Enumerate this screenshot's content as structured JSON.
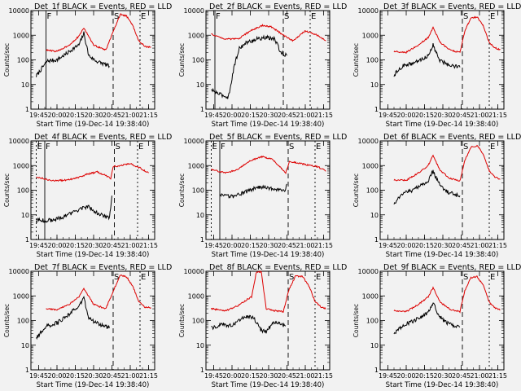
{
  "figure": {
    "xlabel": "Start Time (19-Dec-14 19:38:40)",
    "ylabel": "Counts/sec",
    "x_tick_labels": [
      "19:45",
      "20:00",
      "20:15",
      "20:30",
      "20:45",
      "21:00",
      "21:15"
    ],
    "y_tick_labels": [
      "1",
      "10",
      "100",
      "1000",
      "10000"
    ],
    "colors": {
      "events": "#000000",
      "lld": "#dd0000",
      "background": "#f2f2f2"
    }
  },
  "chart_data": [
    {
      "type": "line",
      "title": "Det_1f BLACK = Events, RED = LLD",
      "xlim": [
        "19:38:40",
        "21:20"
      ],
      "ylim": [
        1,
        10000
      ],
      "yscale": "log",
      "markers": [
        {
          "time": "19:51",
          "label": "F"
        },
        {
          "time": "20:46",
          "label": "S"
        },
        {
          "time": "21:08",
          "label": "E"
        }
      ],
      "series": [
        {
          "name": "Events",
          "color": "#000000",
          "x": [
            "19:43",
            "19:52",
            "20:00",
            "20:08",
            "20:13",
            "20:18",
            "20:22",
            "20:26",
            "20:32",
            "20:38",
            "20:43"
          ],
          "y": [
            22,
            90,
            100,
            180,
            280,
            400,
            1200,
            150,
            90,
            70,
            55
          ]
        },
        {
          "name": "LLD",
          "color": "#dd0000",
          "x": [
            "19:51",
            "20:00",
            "20:10",
            "20:18",
            "20:22",
            "20:30",
            "20:40",
            "20:47",
            "20:52",
            "20:57",
            "21:02",
            "21:07",
            "21:12",
            "21:17"
          ],
          "y": [
            250,
            220,
            400,
            900,
            2000,
            400,
            250,
            1800,
            7000,
            6000,
            2500,
            600,
            350,
            320
          ]
        }
      ]
    },
    {
      "type": "line",
      "title": "Det_2f BLACK = Events, RED = LLD",
      "xlim": [
        "19:38:40",
        "21:20"
      ],
      "ylim": [
        1,
        10000
      ],
      "yscale": "log",
      "markers": [
        {
          "time": "19:46",
          "label": "F"
        },
        {
          "time": "20:42",
          "label": "S"
        },
        {
          "time": "21:04",
          "label": "E"
        }
      ],
      "series": [
        {
          "name": "Events",
          "color": "#000000",
          "x": [
            "19:43",
            "19:50",
            "19:57",
            "20:02",
            "20:06",
            "20:12",
            "20:20",
            "20:28",
            "20:35",
            "20:40",
            "20:45"
          ],
          "y": [
            6,
            4,
            3,
            60,
            300,
            500,
            700,
            800,
            700,
            200,
            150
          ]
        },
        {
          "name": "LLD",
          "color": "#dd0000",
          "x": [
            "19:43",
            "19:55",
            "20:05",
            "20:15",
            "20:25",
            "20:32",
            "20:38",
            "20:42",
            "20:50",
            "21:00",
            "21:10",
            "21:17"
          ],
          "y": [
            1100,
            700,
            700,
            1500,
            2500,
            2200,
            1400,
            1000,
            600,
            1500,
            1000,
            600
          ]
        }
      ]
    },
    {
      "type": "line",
      "title": "Det_3f BLACK = Events, RED = LLD",
      "xlim": [
        "19:38:40",
        "21:20"
      ],
      "ylim": [
        1,
        10000
      ],
      "yscale": "log",
      "markers": [
        {
          "time": "20:46",
          "label": "S"
        },
        {
          "time": "21:08",
          "label": "E"
        }
      ],
      "series": [
        {
          "name": "Events",
          "color": "#000000",
          "x": [
            "19:50",
            "19:58",
            "20:05",
            "20:12",
            "20:18",
            "20:22",
            "20:27",
            "20:33",
            "20:40",
            "20:44"
          ],
          "y": [
            25,
            60,
            70,
            100,
            150,
            400,
            100,
            70,
            55,
            50
          ]
        },
        {
          "name": "LLD",
          "color": "#dd0000",
          "x": [
            "19:50",
            "20:00",
            "20:10",
            "20:18",
            "20:22",
            "20:28",
            "20:36",
            "20:44",
            "20:48",
            "20:53",
            "20:58",
            "21:03",
            "21:08",
            "21:13",
            "21:17"
          ],
          "y": [
            220,
            200,
            400,
            800,
            2000,
            500,
            250,
            200,
            1500,
            5000,
            5500,
            2500,
            500,
            300,
            260
          ]
        }
      ]
    },
    {
      "type": "line",
      "title": "Det_4f BLACK = Events, RED = LLD",
      "xlim": [
        "19:38:40",
        "21:20"
      ],
      "ylim": [
        1,
        10000
      ],
      "yscale": "log",
      "markers": [
        {
          "time": "19:43",
          "label": "E"
        },
        {
          "time": "19:50",
          "label": "F"
        },
        {
          "time": "20:47",
          "label": "S"
        },
        {
          "time": "21:06",
          "label": "E"
        }
      ],
      "series": [
        {
          "name": "Events",
          "color": "#000000",
          "x": [
            "19:43",
            "19:55",
            "20:05",
            "20:15",
            "20:25",
            "20:33",
            "20:40",
            "20:43",
            "20:45"
          ],
          "y": [
            6,
            6,
            8,
            14,
            22,
            12,
            8,
            8,
            60
          ]
        },
        {
          "name": "LLD",
          "color": "#dd0000",
          "x": [
            "19:43",
            "19:55",
            "20:05",
            "20:15",
            "20:25",
            "20:33",
            "20:40",
            "20:44",
            "20:46",
            "21:00",
            "21:08",
            "21:15"
          ],
          "y": [
            350,
            250,
            250,
            300,
            450,
            550,
            400,
            300,
            900,
            1200,
            800,
            500
          ]
        }
      ]
    },
    {
      "type": "line",
      "title": "Det_5f BLACK = Events, RED = LLD",
      "xlim": [
        "19:38:40",
        "21:20"
      ],
      "ylim": [
        1,
        10000
      ],
      "yscale": "log",
      "markers": [
        {
          "time": "19:43",
          "label": "E"
        },
        {
          "time": "19:50",
          "label": "F"
        },
        {
          "time": "20:46",
          "label": "S"
        },
        {
          "time": "21:08",
          "label": "E"
        }
      ],
      "series": [
        {
          "name": "Events",
          "color": "#000000",
          "x": [
            "19:50",
            "20:00",
            "20:10",
            "20:18",
            "20:26",
            "20:32",
            "20:38",
            "20:43",
            "20:45"
          ],
          "y": [
            60,
            55,
            80,
            120,
            140,
            120,
            110,
            90,
            180
          ]
        },
        {
          "name": "LLD",
          "color": "#dd0000",
          "x": [
            "19:43",
            "19:55",
            "20:05",
            "20:15",
            "20:25",
            "20:33",
            "20:40",
            "20:44",
            "20:47",
            "21:00",
            "21:10",
            "21:17"
          ],
          "y": [
            700,
            500,
            700,
            1600,
            2300,
            1800,
            800,
            500,
            1500,
            1100,
            900,
            600
          ]
        }
      ]
    },
    {
      "type": "line",
      "title": "Det_6f BLACK = Events, RED = LLD",
      "xlim": [
        "19:38:40",
        "21:20"
      ],
      "ylim": [
        1,
        10000
      ],
      "yscale": "log",
      "markers": [
        {
          "time": "20:46",
          "label": "S"
        },
        {
          "time": "21:08",
          "label": "E"
        }
      ],
      "series": [
        {
          "name": "Events",
          "color": "#000000",
          "x": [
            "19:50",
            "19:58",
            "20:05",
            "20:12",
            "20:18",
            "20:22",
            "20:27",
            "20:33",
            "20:40",
            "20:44"
          ],
          "y": [
            30,
            80,
            100,
            150,
            250,
            600,
            180,
            90,
            65,
            60
          ]
        },
        {
          "name": "LLD",
          "color": "#dd0000",
          "x": [
            "19:50",
            "20:00",
            "20:10",
            "20:18",
            "20:22",
            "20:28",
            "20:36",
            "20:44",
            "20:48",
            "20:53",
            "20:58",
            "21:03",
            "21:08",
            "21:13",
            "21:17"
          ],
          "y": [
            260,
            250,
            500,
            1000,
            2500,
            600,
            300,
            240,
            1600,
            5500,
            6500,
            3000,
            600,
            330,
            280
          ]
        }
      ]
    },
    {
      "type": "line",
      "title": "Det_7f BLACK = Events, RED = LLD",
      "xlim": [
        "19:38:40",
        "21:20"
      ],
      "ylim": [
        1,
        10000
      ],
      "yscale": "log",
      "markers": [
        {
          "time": "20:46",
          "label": "S"
        },
        {
          "time": "21:08",
          "label": "E"
        }
      ],
      "series": [
        {
          "name": "Events",
          "color": "#000000",
          "x": [
            "19:43",
            "19:52",
            "20:00",
            "20:08",
            "20:13",
            "20:18",
            "20:22",
            "20:26",
            "20:32",
            "20:38",
            "20:43"
          ],
          "y": [
            20,
            60,
            80,
            150,
            250,
            350,
            900,
            120,
            80,
            60,
            50
          ]
        },
        {
          "name": "LLD",
          "color": "#dd0000",
          "x": [
            "19:51",
            "20:00",
            "20:10",
            "20:18",
            "20:22",
            "20:30",
            "20:40",
            "20:47",
            "20:52",
            "20:57",
            "21:02",
            "21:07",
            "21:12",
            "21:17"
          ],
          "y": [
            300,
            280,
            450,
            900,
            2000,
            450,
            300,
            2000,
            7000,
            6000,
            2500,
            600,
            350,
            330
          ]
        }
      ]
    },
    {
      "type": "line",
      "title": "Det_8f BLACK = Events, RED = LLD",
      "xlim": [
        "19:38:40",
        "21:20"
      ],
      "ylim": [
        1,
        10000
      ],
      "yscale": "log",
      "markers": [
        {
          "time": "20:46",
          "label": "S"
        },
        {
          "time": "21:08",
          "label": "E"
        }
      ],
      "series": [
        {
          "name": "Events",
          "color": "#000000",
          "x": [
            "19:43",
            "19:52",
            "20:00",
            "20:06",
            "20:12",
            "20:18",
            "20:24",
            "20:28",
            "20:34",
            "20:40",
            "20:44"
          ],
          "y": [
            50,
            70,
            60,
            100,
            150,
            120,
            40,
            35,
            90,
            70,
            60
          ]
        },
        {
          "name": "LLD",
          "color": "#dd0000",
          "x": [
            "19:43",
            "19:55",
            "20:05",
            "20:12",
            "20:16",
            "20:20",
            "20:24",
            "20:28",
            "20:35",
            "20:42",
            "20:47",
            "20:52",
            "20:58",
            "21:03",
            "21:08",
            "21:13",
            "21:17"
          ],
          "y": [
            300,
            250,
            400,
            700,
            900,
            9500,
            9500,
            300,
            250,
            230,
            2000,
            6500,
            6000,
            2500,
            600,
            350,
            300
          ]
        }
      ]
    },
    {
      "type": "line",
      "title": "Det_9f BLACK = Events, RED = LLD",
      "xlim": [
        "19:38:40",
        "21:20"
      ],
      "ylim": [
        1,
        10000
      ],
      "yscale": "log",
      "markers": [
        {
          "time": "20:46",
          "label": "S"
        },
        {
          "time": "21:08",
          "label": "E"
        }
      ],
      "series": [
        {
          "name": "Events",
          "color": "#000000",
          "x": [
            "19:50",
            "19:58",
            "20:05",
            "20:12",
            "20:18",
            "20:22",
            "20:27",
            "20:33",
            "20:40",
            "20:44"
          ],
          "y": [
            30,
            70,
            90,
            140,
            220,
            500,
            150,
            80,
            60,
            55
          ]
        },
        {
          "name": "LLD",
          "color": "#dd0000",
          "x": [
            "19:50",
            "20:00",
            "20:10",
            "20:18",
            "20:22",
            "20:28",
            "20:36",
            "20:44",
            "20:48",
            "20:53",
            "20:58",
            "21:03",
            "21:08",
            "21:13",
            "21:17"
          ],
          "y": [
            250,
            230,
            450,
            900,
            2200,
            550,
            280,
            230,
            1600,
            5500,
            6000,
            2800,
            550,
            320,
            280
          ]
        }
      ]
    }
  ]
}
